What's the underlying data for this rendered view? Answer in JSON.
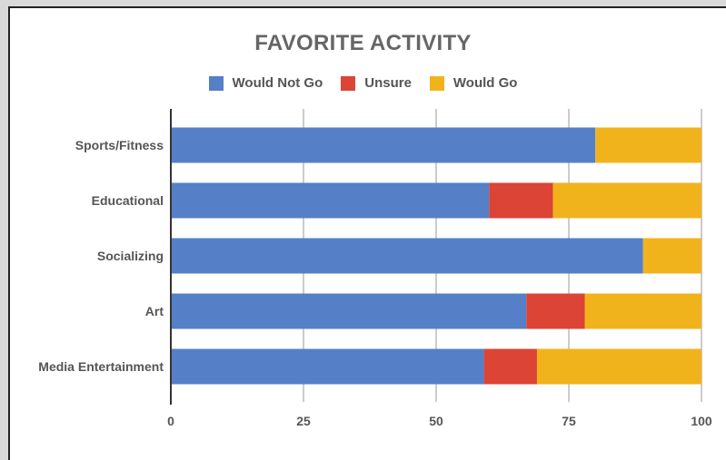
{
  "chart_data": {
    "type": "bar",
    "orientation": "horizontal",
    "stacked": true,
    "title": "FAVORITE ACTIVITY",
    "categories": [
      "Sports/Fitness",
      "Educational",
      "Socializing",
      "Art",
      "Media Entertainment"
    ],
    "series": [
      {
        "name": "Would Not Go",
        "color": "#5580c7",
        "values": [
          80,
          60,
          89,
          67,
          59
        ]
      },
      {
        "name": "Unsure",
        "color": "#dc4436",
        "values": [
          0,
          12,
          0,
          11,
          10
        ]
      },
      {
        "name": "Would Go",
        "color": "#f1b31c",
        "values": [
          20,
          28,
          11,
          22,
          31
        ]
      }
    ],
    "xlim": [
      0,
      100
    ],
    "xticks": [
      "0",
      "25",
      "50",
      "75",
      "100"
    ],
    "grid": true,
    "legend_position": "top"
  }
}
